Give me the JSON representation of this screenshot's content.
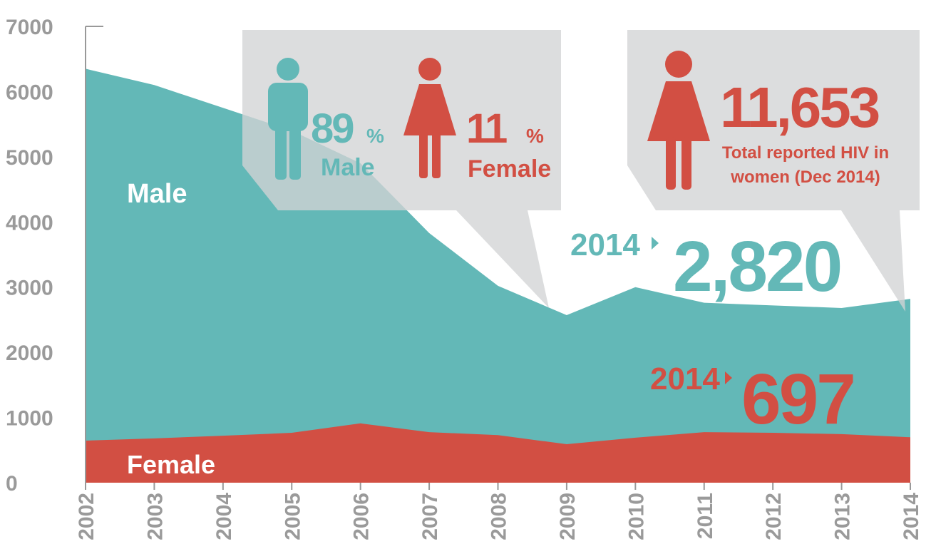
{
  "chart_data": {
    "type": "area",
    "x": [
      2002,
      2003,
      2004,
      2005,
      2006,
      2007,
      2008,
      2009,
      2010,
      2011,
      2012,
      2013,
      2014
    ],
    "xlim": [
      2002,
      2014
    ],
    "series": [
      {
        "name": "Male",
        "color": "#63b8b7",
        "values": [
          6350,
          6100,
          5750,
          5400,
          4900,
          3830,
          3020,
          2570,
          3000,
          2760,
          2720,
          2680,
          2820
        ]
      },
      {
        "name": "Female",
        "color": "#d24f43",
        "values": [
          645,
          680,
          720,
          765,
          910,
          775,
          730,
          590,
          690,
          775,
          765,
          745,
          697
        ]
      }
    ],
    "ylim": [
      0,
      7000
    ],
    "yticks": [
      0,
      1000,
      2000,
      3000,
      4000,
      5000,
      6000,
      7000
    ],
    "annotations": [
      {
        "text": "89",
        "color": "#63b8b7"
      },
      {
        "text": "%",
        "color": "#63b8b7"
      },
      {
        "text": "Male",
        "color": "#63b8b7"
      },
      {
        "text": "11",
        "color": "#d24f43"
      },
      {
        "text": "%",
        "color": "#d24f43"
      },
      {
        "text": "Female",
        "color": "#d24f43"
      },
      {
        "text": "11,653",
        "color": "#d24f43"
      },
      {
        "text": "Total reported HIV in",
        "color": "#d24f43"
      },
      {
        "text": "women (Dec 2014)",
        "color": "#d24f43"
      },
      {
        "text": "2014",
        "color": "#63b8b7"
      },
      {
        "text": "2,820",
        "color": "#63b8b7"
      },
      {
        "text": "2014",
        "color": "#d24f43"
      },
      {
        "text": "697",
        "color": "#d24f43"
      }
    ]
  }
}
